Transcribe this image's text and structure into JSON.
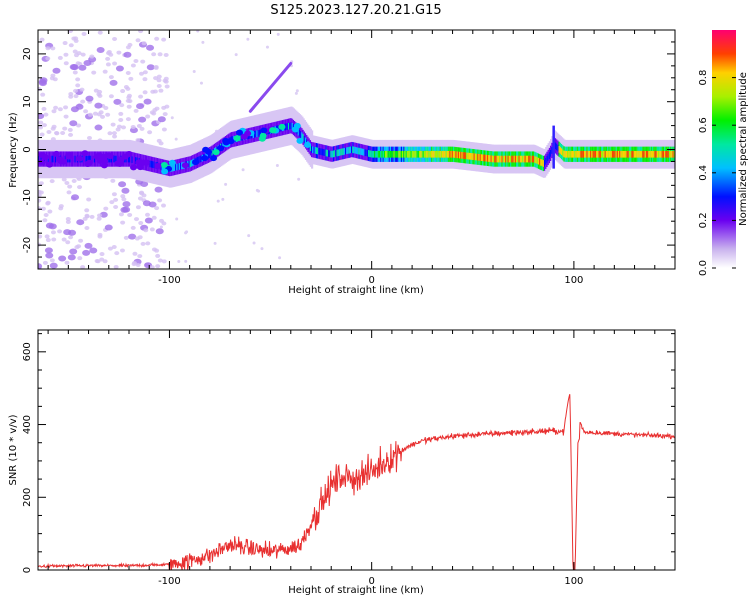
{
  "title": "S125.2023.127.20.21.G15",
  "chart_data": [
    {
      "type": "heatmap",
      "xlabel": "Height of straight line (km)",
      "ylabel": "Frequency (Hz)",
      "xlim": [
        -165,
        150
      ],
      "ylim": [
        -25,
        25
      ],
      "xticks": [
        -100,
        0,
        100
      ],
      "yticks": [
        -20,
        -10,
        0,
        10,
        20
      ],
      "colorbar": {
        "label": "Normalized spectral amplitude",
        "range": [
          0,
          1
        ],
        "ticks": [
          0.0,
          0.2,
          0.4,
          0.6,
          0.8
        ]
      },
      "ridge": {
        "x": [
          -165,
          -120,
          -100,
          -90,
          -80,
          -70,
          -60,
          -50,
          -40,
          -35,
          -30,
          -20,
          -10,
          0,
          10,
          20,
          40,
          60,
          70,
          80,
          85,
          88,
          90,
          95,
          110,
          130,
          150
        ],
        "y": [
          -2,
          -2,
          -4,
          -3,
          -1,
          2,
          3,
          4,
          5,
          3,
          0,
          -1,
          0,
          -1,
          -1,
          -1,
          -1,
          -2,
          -2,
          -2,
          -3,
          -1,
          1,
          -1,
          -1,
          -1,
          -1
        ]
      },
      "noise_region_x": [
        -165,
        -105
      ]
    },
    {
      "type": "line",
      "xlabel": "Height of straight line (km)",
      "ylabel": "SNR (10 * v/v)",
      "xlim": [
        -165,
        150
      ],
      "ylim": [
        0,
        660
      ],
      "xticks": [
        -100,
        0,
        100
      ],
      "yticks": [
        0,
        200,
        400,
        600
      ],
      "color": "#e83030",
      "series": [
        {
          "x": [
            -165,
            -140,
            -120,
            -100,
            -90,
            -80,
            -70,
            -60,
            -50,
            -40,
            -35,
            -30,
            -25,
            -20,
            -15,
            -10,
            -5,
            0,
            5,
            10,
            15,
            20,
            25,
            30,
            40,
            50,
            60,
            70,
            80,
            85,
            90,
            95,
            98,
            100,
            102,
            105,
            110,
            120,
            130,
            140,
            150
          ],
          "y": [
            10,
            12,
            12,
            15,
            25,
            40,
            70,
            60,
            50,
            60,
            70,
            130,
            180,
            230,
            260,
            250,
            260,
            270,
            290,
            310,
            330,
            345,
            355,
            360,
            368,
            372,
            375,
            378,
            380,
            382,
            383,
            380,
            520,
            10,
            420,
            380,
            378,
            375,
            372,
            370,
            368
          ]
        }
      ]
    }
  ]
}
